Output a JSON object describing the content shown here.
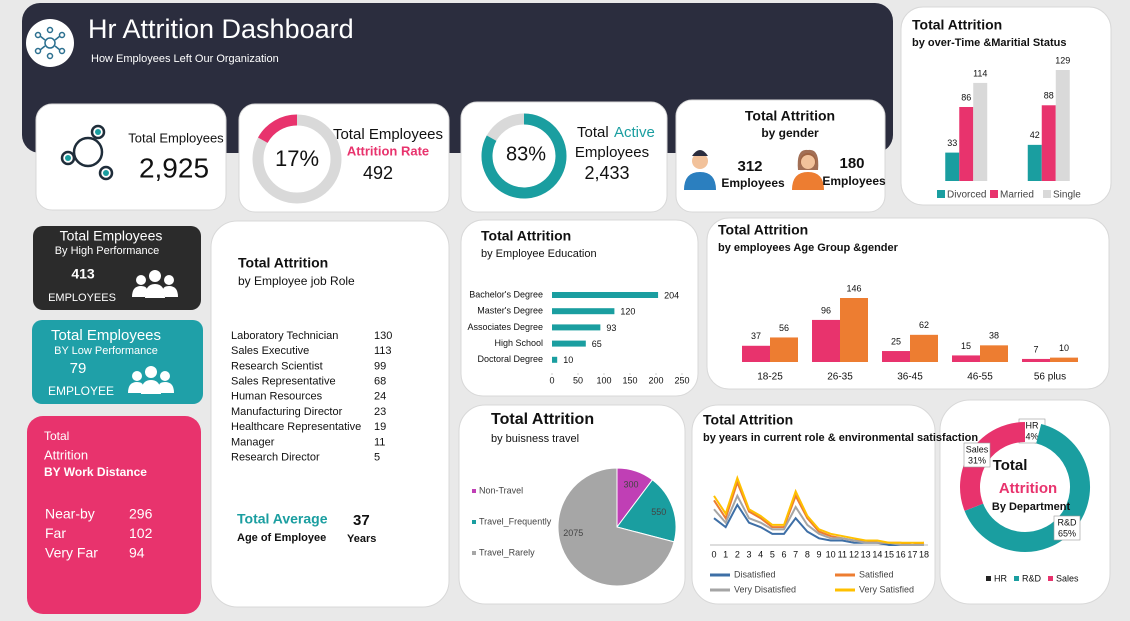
{
  "header": {
    "title": "Hr  Attrition Dashboard",
    "subtitle": "How Employees Left Our Organization"
  },
  "kpis": {
    "total_employees": {
      "label": "Total Employees",
      "value": "2,925"
    },
    "attrition_rate": {
      "label": "Total Employees",
      "sublabel": "Attrition Rate",
      "rate": {
        "value": 17,
        "label": "17%"
      },
      "count": 492
    },
    "active": {
      "label": "Total",
      "highlight": "Active",
      "sublabel": "Employees",
      "rate": {
        "value": 83,
        "label": "83%"
      },
      "count": "2,433"
    },
    "gender": {
      "title": "Total Attrition",
      "subtitle": "by gender",
      "male": 312,
      "male_unit": "Employees",
      "female": 180,
      "female_unit": "Employees"
    },
    "high_performance": {
      "title": "Total Employees",
      "subtitle": "By High Performance",
      "value": 413,
      "unit": "EMPLOYEES"
    },
    "low_performance": {
      "title": "Total Employees",
      "subtitle": "BY Low Performance",
      "value": 79,
      "unit": "EMPLOYEE"
    },
    "work_distance": {
      "title": "Total",
      "title2": "Attrition",
      "subtitle": "BY Work Distance",
      "rows": [
        [
          "Near-by",
          296
        ],
        [
          "Far",
          102
        ],
        [
          "Very Far",
          94
        ]
      ]
    },
    "job_role": {
      "title": "Total Attrition",
      "subtitle": "by Employee job Role",
      "rows": [
        [
          "Laboratory Technician",
          130
        ],
        [
          "Sales Executive",
          113
        ],
        [
          "Research Scientist",
          99
        ],
        [
          "Sales Representative",
          68
        ],
        [
          "Human Resources",
          24
        ],
        [
          "Manufacturing Director",
          23
        ],
        [
          "Healthcare Representative",
          19
        ],
        [
          "Manager",
          11
        ],
        [
          "Research Director",
          5
        ]
      ]
    },
    "average_age": {
      "label": "Total Average",
      "sublabel": "Age of Employee",
      "value": 37,
      "unit": "Years"
    }
  },
  "chart_data": [
    {
      "type": "bar",
      "title": "Total Attrition",
      "subtitle": "by over-Time &Maritial Status",
      "categories": [
        null,
        null
      ],
      "series": [
        {
          "name": "Divorced",
          "color": "#1a9ea0",
          "values": [
            33,
            42
          ]
        },
        {
          "name": "Married",
          "color": "#e8336d",
          "values": [
            86,
            88
          ]
        },
        {
          "name": "Single",
          "color": "#d9d9d9",
          "values": [
            114,
            129
          ]
        }
      ]
    },
    {
      "type": "hbar",
      "title": "Total Attrition",
      "subtitle": "by Employee Education",
      "categories": [
        "Bachelor's Degree",
        "Master's Degree",
        "Associates Degree",
        "High School",
        "Doctoral Degree"
      ],
      "values": [
        204,
        120,
        93,
        65,
        10
      ],
      "color": "#1a9ea0",
      "xlim": [
        0,
        250
      ],
      "xticks": [
        0,
        50,
        100,
        150,
        200,
        250
      ]
    },
    {
      "type": "bar",
      "title": "Total Attrition",
      "subtitle": "by employees Age Group &gender",
      "categories": [
        "18-25",
        "26-35",
        "36-45",
        "46-55",
        "56 plus"
      ],
      "series": [
        {
          "color": "#e8336d",
          "values": [
            37,
            96,
            25,
            15,
            7
          ]
        },
        {
          "color": "#ed7d31",
          "values": [
            56,
            146,
            62,
            38,
            10
          ]
        }
      ]
    },
    {
      "type": "pie",
      "title": "Total Attrition",
      "subtitle": "by buisness travel",
      "categories": [
        "Non-Travel",
        "Travel_Frequently",
        "Travel_Rarely"
      ],
      "values": [
        300,
        550,
        2075
      ],
      "colors": [
        "#c03fb5",
        "#1a9ea0",
        "#a6a6a6"
      ]
    },
    {
      "type": "line",
      "title": "Total  Attrition",
      "subtitle": "by years in current role & environmental satisfaction",
      "x": [
        0,
        1,
        2,
        3,
        4,
        5,
        6,
        7,
        8,
        9,
        10,
        11,
        12,
        13,
        14,
        15,
        16,
        17,
        18
      ],
      "series": [
        {
          "name": "Disatisfied",
          "color": "#3e6fa6",
          "values": [
            12,
            8,
            18,
            10,
            8,
            5,
            5,
            12,
            6,
            3,
            2,
            2,
            1,
            1,
            1,
            0,
            0,
            0,
            0
          ]
        },
        {
          "name": "Satisfied",
          "color": "#ed7d31",
          "values": [
            20,
            12,
            28,
            15,
            12,
            8,
            8,
            22,
            12,
            6,
            4,
            3,
            2,
            2,
            1,
            1,
            1,
            0,
            1
          ]
        },
        {
          "name": "Very Disatisfied",
          "color": "#a5a5a5",
          "values": [
            16,
            10,
            22,
            12,
            10,
            7,
            7,
            17,
            9,
            5,
            3,
            3,
            2,
            1,
            1,
            1,
            0,
            0,
            0
          ]
        },
        {
          "name": "Very Satisfied",
          "color": "#ffc000",
          "values": [
            22,
            14,
            30,
            16,
            13,
            9,
            9,
            24,
            13,
            7,
            5,
            4,
            3,
            2,
            2,
            1,
            1,
            1,
            1
          ]
        }
      ]
    },
    {
      "type": "donut",
      "title": "Total",
      "title_highlight": "Attrition",
      "subtitle": "By Department",
      "categories": [
        "HR",
        "R&D",
        "Sales"
      ],
      "values": [
        4,
        65,
        31
      ],
      "value_labels": [
        "4%",
        "65%",
        "31%"
      ],
      "colors": [
        "#222222",
        "#1a9ea0",
        "#e8336d"
      ]
    }
  ]
}
